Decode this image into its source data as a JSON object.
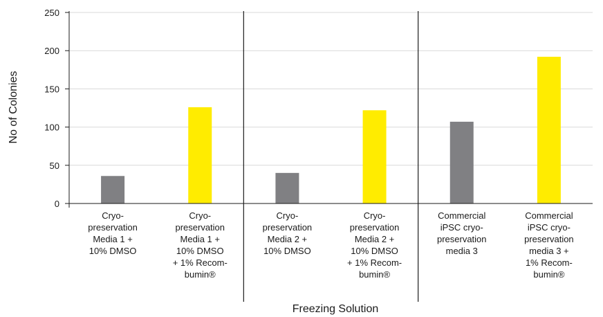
{
  "chart_data": {
    "type": "bar",
    "categories": [
      "Cryo-\npreservation\nMedia 1 +\n10% DMSO",
      "Cryo-\npreservation\nMedia 1 +\n10% DMSO\n+ 1% Recom-\nbumin®",
      "Cryo-\npreservation\nMedia 2 +\n10% DMSO",
      "Cryo-\npreservation\nMedia 2 +\n10% DMSO\n+ 1% Recom-\nbumin®",
      "Commercial\niPSC cryo-\npreservation\nmedia 3",
      "Commercial\niPSC cryo-\npreservation\nmedia 3 +\n1% Recom-\nbumin®"
    ],
    "values": [
      36,
      126,
      40,
      122,
      107,
      192
    ],
    "bar_colors": [
      "#808083",
      "#ffec00",
      "#808083",
      "#ffec00",
      "#808083",
      "#ffec00"
    ],
    "xlabel": "Freezing Solution",
    "ylabel": "No of Colonies",
    "ylim": [
      0,
      250
    ],
    "yticks": [
      "0",
      "50",
      "100",
      "150",
      "200",
      "250"
    ],
    "grid": true,
    "group_separators": true,
    "colors": {
      "gray_bar": "#808083",
      "yellow_bar": "#ffec00",
      "grid": "#d9d9d9",
      "axis": "#1a1a1a"
    }
  }
}
